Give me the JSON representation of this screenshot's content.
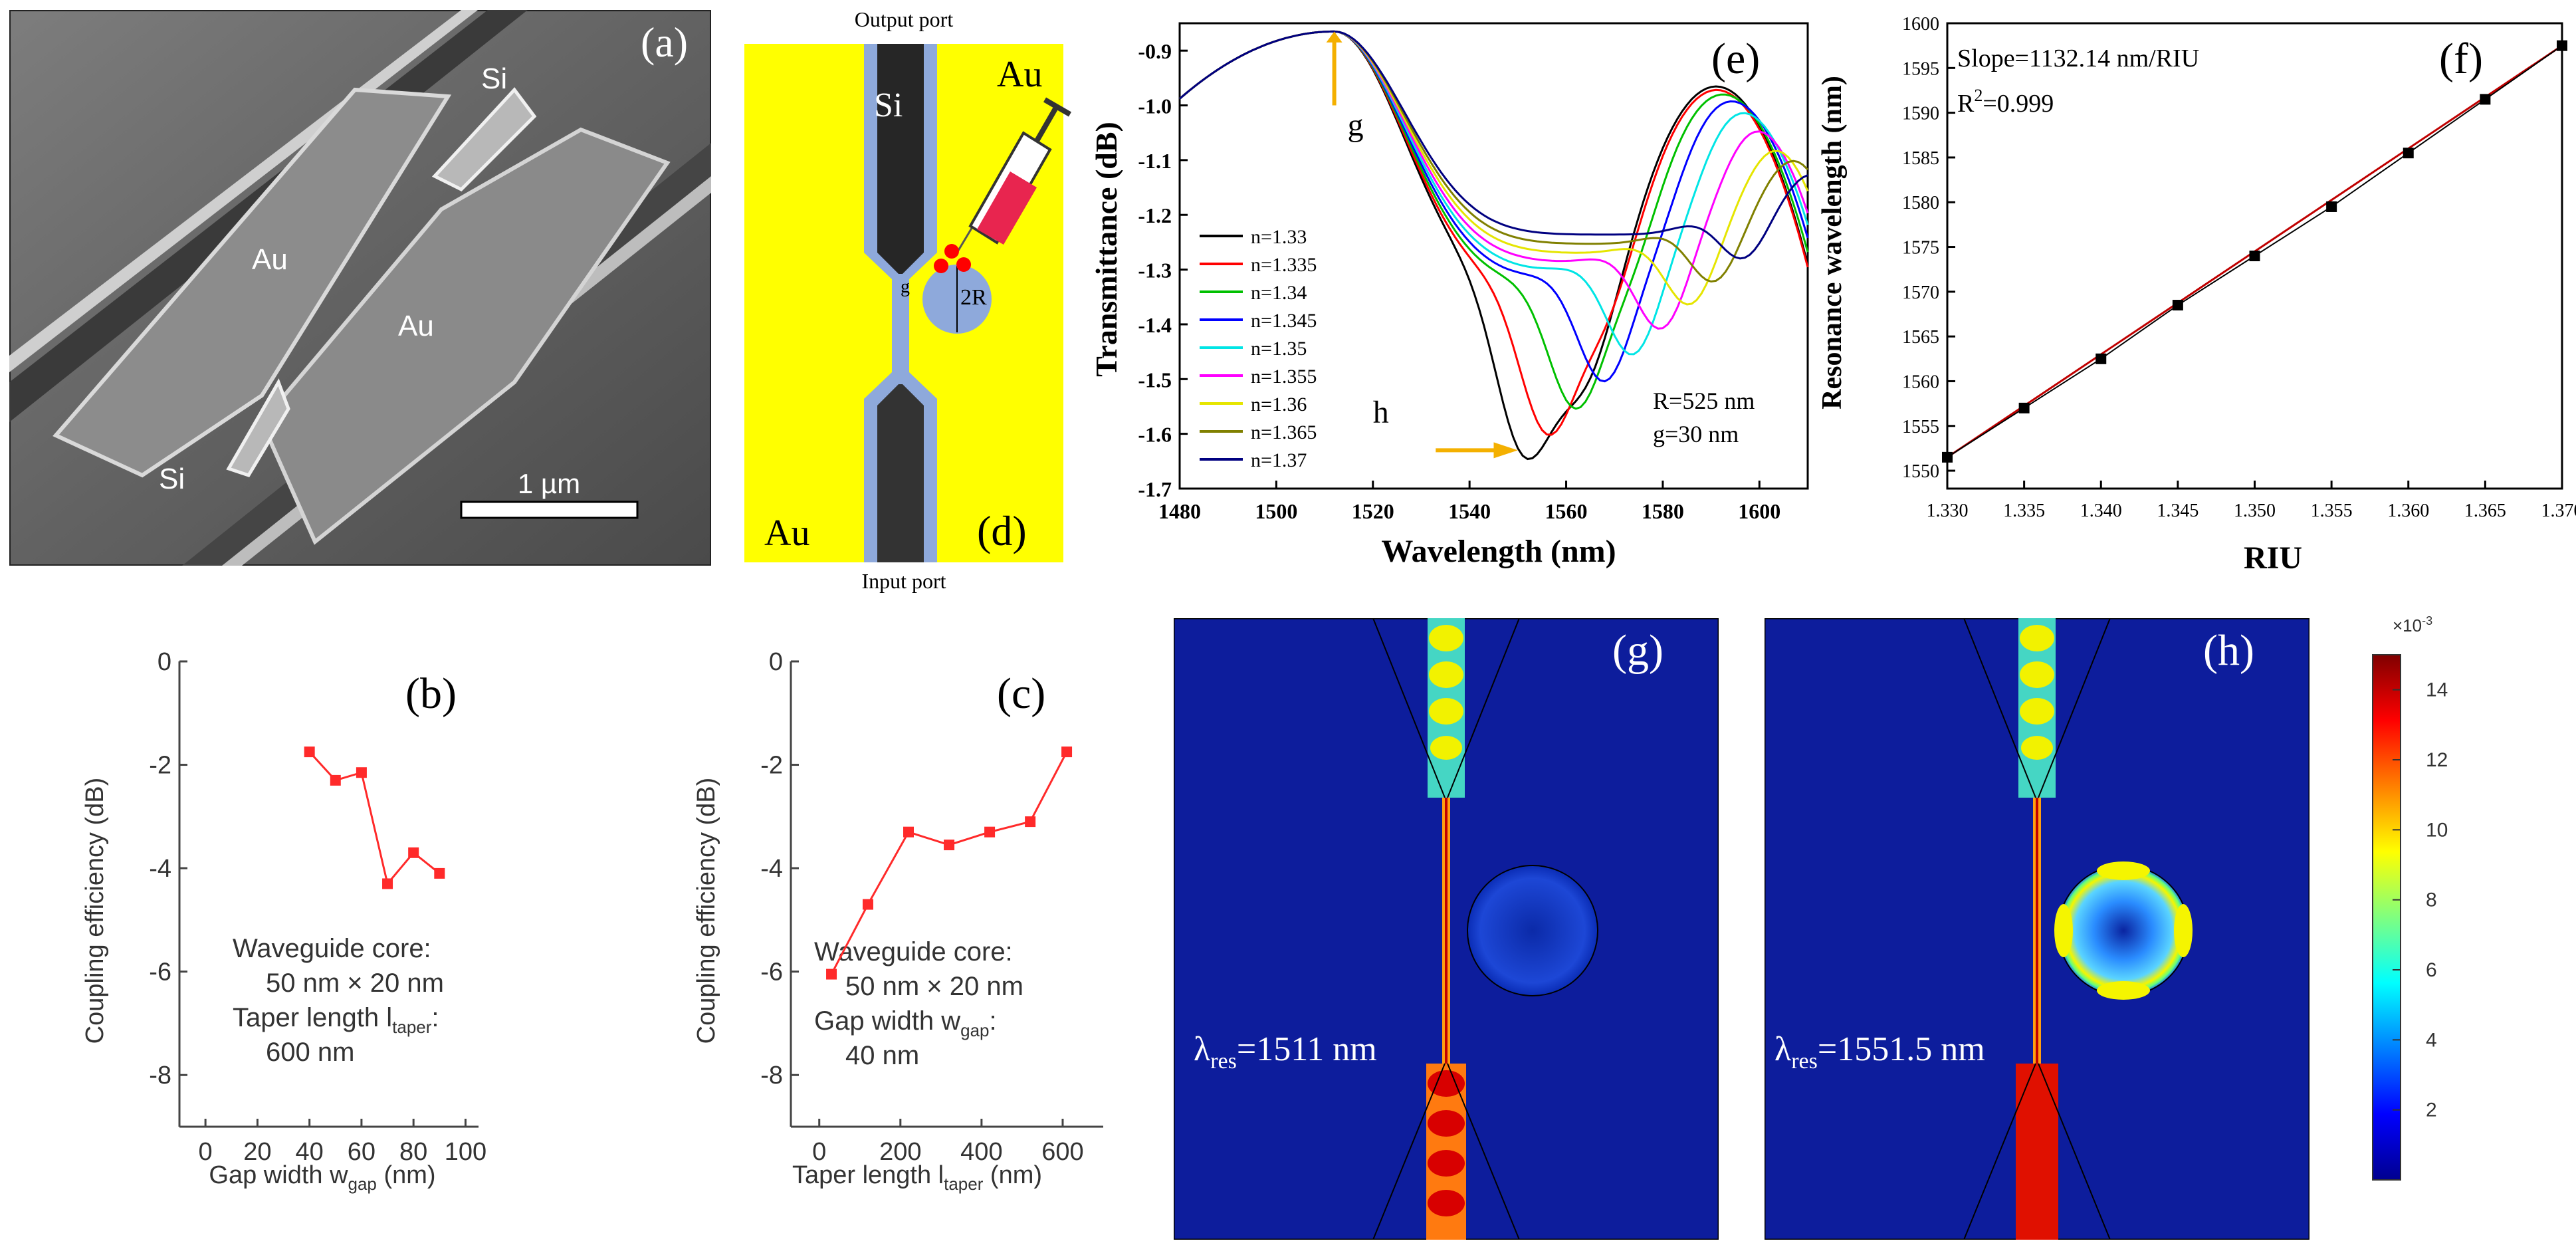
{
  "panel_a": {
    "label": "(a)",
    "text_si_top": "Si",
    "text_si_bottom": "Si",
    "text_au_left": "Au",
    "text_au_right": "Au",
    "scalebar_label": "1 µm"
  },
  "panel_d": {
    "label": "(d)",
    "output_port": "Output port",
    "input_port": "Input port",
    "text_si": "Si",
    "text_au_top": "Au",
    "text_au_bottom": "Au",
    "text_g": "g",
    "text_2r": "2R",
    "colors": {
      "background": "#ffff00",
      "cladding": "#8ea9db",
      "core": "#2a2a2a"
    }
  },
  "chart_data": [
    {
      "id": "b",
      "type": "line",
      "label": "(b)",
      "xlabel": "Gap width w",
      "xlabel_sub": "gap",
      "xlabel_unit": " (nm)",
      "ylabel": "Coupling efficiency (dB)",
      "xlim": [
        -10,
        105
      ],
      "ylim": [
        -9,
        0
      ],
      "xticks": [
        "0",
        "20",
        "40",
        "60",
        "80",
        "100"
      ],
      "yticks": [
        "0",
        "-2",
        "-4",
        "-6",
        "-8"
      ],
      "x": [
        40,
        50,
        60,
        70,
        80,
        90
      ],
      "y": [
        -1.75,
        -2.3,
        -2.15,
        -4.3,
        -3.7,
        -4.1
      ],
      "annotation": [
        "Waveguide core:",
        "50 nm × 20 nm",
        "Taper length l",
        "600 nm"
      ],
      "annotation_sub": "taper",
      "color": "#ff2a2a"
    },
    {
      "id": "c",
      "type": "line",
      "label": "(c)",
      "xlabel": "Taper length l",
      "xlabel_sub": "taper",
      "xlabel_unit": " (nm)",
      "ylabel": "Coupling efficiency (dB)",
      "xlim": [
        -70,
        700
      ],
      "ylim": [
        -9,
        0
      ],
      "xticks": [
        "0",
        "200",
        "400",
        "600"
      ],
      "yticks": [
        "0",
        "-2",
        "-4",
        "-6",
        "-8"
      ],
      "x": [
        30,
        120,
        220,
        320,
        420,
        520,
        610
      ],
      "y": [
        -6.05,
        -4.7,
        -3.3,
        -3.55,
        -3.3,
        -3.1,
        -1.75
      ],
      "annotation": [
        "Waveguide core:",
        "50 nm × 20 nm",
        "Gap width w",
        "40 nm"
      ],
      "annotation_sub": "gap",
      "color": "#ff2a2a"
    },
    {
      "id": "e",
      "type": "line",
      "label": "(e)",
      "xlabel": "Wavelength (nm)",
      "ylabel": "Transmittance (dB)",
      "xlim": [
        1480,
        1610
      ],
      "ylim": [
        -1.7,
        -0.85
      ],
      "xticks": [
        "1480",
        "1500",
        "1520",
        "1540",
        "1560",
        "1580",
        "1600"
      ],
      "yticks": [
        "-0.9",
        "-1.0",
        "-1.1",
        "-1.2",
        "-1.3",
        "-1.4",
        "-1.5",
        "-1.6",
        "-1.7"
      ],
      "marker_g": "g",
      "marker_h": "h",
      "annotation": [
        "R=525 nm",
        "g=30 nm"
      ],
      "series": [
        {
          "name": "n=1.33",
          "color": "#000000",
          "dip": 1551,
          "peak": 1591
        },
        {
          "name": "n=1.335",
          "color": "#ff0000",
          "dip": 1556,
          "peak": 1591
        },
        {
          "name": "n=1.34",
          "color": "#00c000",
          "dip": 1562,
          "peak": 1592
        },
        {
          "name": "n=1.345",
          "color": "#0000ff",
          "dip": 1568,
          "peak": 1593
        },
        {
          "name": "n=1.35",
          "color": "#00e5e5",
          "dip": 1574,
          "peak": 1594
        },
        {
          "name": "n=1.355",
          "color": "#ff00ff",
          "dip": 1580,
          "peak": 1595
        },
        {
          "name": "n=1.36",
          "color": "#e5e500",
          "dip": 1586,
          "peak": 1597
        },
        {
          "name": "n=1.365",
          "color": "#808000",
          "dip": 1591,
          "peak": 1600
        },
        {
          "name": "n=1.37",
          "color": "#000080",
          "dip": 1597,
          "peak": 1603
        }
      ]
    },
    {
      "id": "f",
      "type": "scatter",
      "label": "(f)",
      "xlabel": "RIU",
      "ylabel": "Resonance wavelength (nm)",
      "xlim": [
        1.33,
        1.37
      ],
      "ylim": [
        1548,
        1600
      ],
      "xticks": [
        "1.330",
        "1.335",
        "1.340",
        "1.345",
        "1.350",
        "1.355",
        "1.360",
        "1.365",
        "1.370"
      ],
      "yticks": [
        "1550",
        "1555",
        "1560",
        "1565",
        "1570",
        "1575",
        "1580",
        "1585",
        "1590",
        "1595",
        "1600"
      ],
      "x": [
        1.33,
        1.335,
        1.34,
        1.345,
        1.35,
        1.355,
        1.36,
        1.365,
        1.37
      ],
      "y": [
        1551.5,
        1557.0,
        1562.5,
        1568.5,
        1574.0,
        1579.5,
        1585.5,
        1591.5,
        1597.5
      ],
      "annotation_slope": "Slope=1132.14 nm/RIU",
      "annotation_r2_base": "R",
      "annotation_r2_exp": "2",
      "annotation_r2_val": "=0.999"
    }
  ],
  "panel_g": {
    "label": "(g)",
    "lambda": "λ",
    "sub": "res",
    "value": "=1511 nm"
  },
  "panel_h": {
    "label": "(h)",
    "lambda": "λ",
    "sub": "res",
    "value": "=1551.5 nm"
  },
  "colorbar": {
    "exponent": "×10",
    "exponent_power": "-3",
    "ticks": [
      "2",
      "4",
      "6",
      "8",
      "10",
      "12",
      "14"
    ],
    "range": [
      0,
      15
    ]
  }
}
